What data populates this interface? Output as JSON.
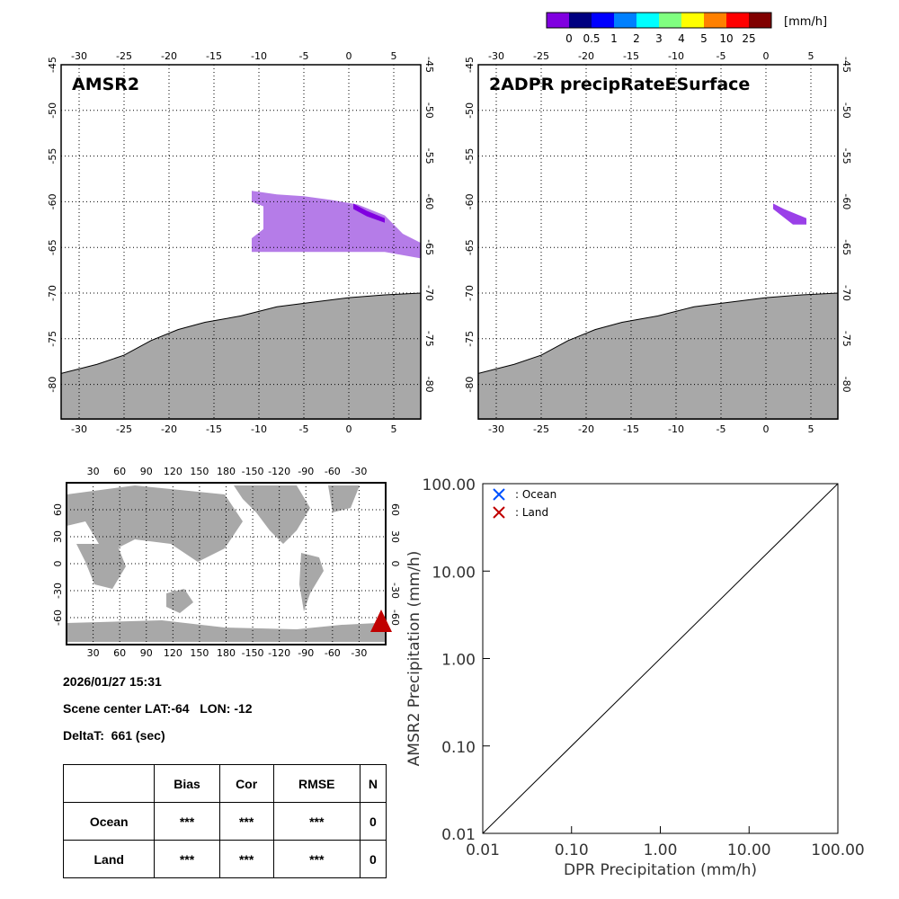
{
  "colorbar": {
    "unit": "[mm/h]",
    "labels": [
      "0",
      "0.5",
      "1",
      "2",
      "3",
      "4",
      "5",
      "10",
      "25"
    ],
    "colors": [
      "#8000e0",
      "#000080",
      "#0000ff",
      "#0080ff",
      "#00ffff",
      "#80ff80",
      "#ffff00",
      "#ff8000",
      "#ff0000",
      "#800000"
    ]
  },
  "maps": [
    {
      "title": "AMSR2"
    },
    {
      "title": "2ADPR precipRateESurface"
    }
  ],
  "map_axes": {
    "lon_ticks": [
      "-30",
      "-25",
      "-20",
      "-15",
      "-10",
      "-5",
      "0",
      "5"
    ],
    "lat_ticks": [
      "-45",
      "-50",
      "-55",
      "-60",
      "-65",
      "-70",
      "-75",
      "-80"
    ]
  },
  "globe_axes": {
    "lon_ticks": [
      "30",
      "60",
      "90",
      "120",
      "150",
      "180",
      "-150",
      "-120",
      "-90",
      "-60",
      "-30"
    ],
    "lat_ticks": [
      "60",
      "30",
      "0",
      "-30",
      "-60"
    ]
  },
  "info": {
    "datetime": "2026/01/27 15:31",
    "scene_center": "Scene center LAT:-64   LON: -12",
    "deltat": "DeltaT:  661 (sec)"
  },
  "stats": {
    "headers": [
      "",
      "Bias",
      "Cor",
      "RMSE",
      "N"
    ],
    "rows": [
      [
        "Ocean",
        "***",
        "***",
        "***",
        "0"
      ],
      [
        "Land",
        "***",
        "***",
        "***",
        "0"
      ]
    ]
  },
  "chart_data": {
    "type": "scatter",
    "xlabel": "DPR Precipitation (mm/h)",
    "ylabel": "AMSR2 Precipitation (mm/h)",
    "xlim": [
      0.01,
      100
    ],
    "ylim": [
      0.01,
      100
    ],
    "scale": "log",
    "x_ticks": [
      "0.01",
      "0.10",
      "1.00",
      "10.00",
      "100.00"
    ],
    "y_ticks": [
      "0.01",
      "0.10",
      "1.00",
      "10.00",
      "100.00"
    ],
    "legend": [
      {
        "label": ": Ocean",
        "color": "#0050ff"
      },
      {
        "label": ": Land",
        "color": "#c00000"
      }
    ],
    "series": [
      {
        "name": "Ocean",
        "points": []
      },
      {
        "name": "Land",
        "points": []
      }
    ],
    "reference_line": "1:1",
    "legend_position": "top-left"
  }
}
